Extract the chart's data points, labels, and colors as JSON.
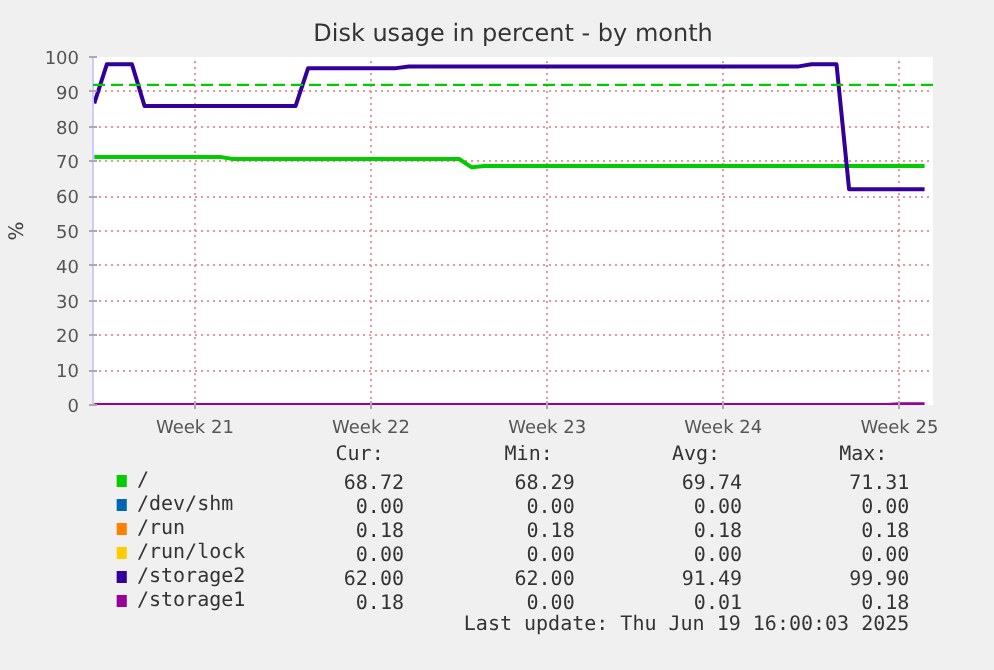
{
  "chart_data": {
    "type": "line",
    "title": "Disk usage in percent - by month",
    "ylabel": "%",
    "categories": [
      null,
      null,
      null,
      null,
      null,
      null,
      null,
      null,
      "Week 21",
      null,
      null,
      null,
      null,
      null,
      null,
      null,
      null,
      null,
      null,
      null,
      null,
      null,
      "Week 22",
      null,
      null,
      null,
      null,
      null,
      null,
      null,
      null,
      null,
      null,
      null,
      null,
      null,
      "Week 23",
      null,
      null,
      null,
      null,
      null,
      null,
      null,
      null,
      null,
      null,
      null,
      null,
      null,
      "Week 24",
      null,
      null,
      null,
      null,
      null,
      null,
      null,
      null,
      null,
      null,
      null,
      null,
      null,
      "Week 25",
      null,
      null
    ],
    "ylim": [
      0,
      100
    ],
    "yticks": [
      0,
      10,
      20,
      30,
      40,
      50,
      60,
      70,
      80,
      90,
      100
    ],
    "grid": true,
    "legend": "bottom",
    "line_style": "solid",
    "series": [
      {
        "name": "/",
        "color": "#00cc00",
        "values": [
          71.3,
          71.3,
          71.3,
          71.3,
          71.3,
          71.3,
          71.3,
          71.3,
          71.3,
          71.3,
          71.3,
          70.7,
          70.7,
          70.7,
          70.7,
          70.7,
          70.7,
          70.7,
          70.7,
          70.7,
          70.7,
          70.7,
          70.7,
          70.7,
          70.7,
          70.7,
          70.7,
          70.7,
          70.7,
          70.7,
          68.3,
          68.7,
          68.7,
          68.7,
          68.7,
          68.7,
          68.7,
          68.7,
          68.7,
          68.7,
          68.7,
          68.7,
          68.7,
          68.7,
          68.7,
          68.7,
          68.7,
          68.7,
          68.7,
          68.7,
          68.7,
          68.7,
          68.7,
          68.7,
          68.7,
          68.7,
          68.7,
          68.7,
          68.7,
          68.7,
          68.7,
          68.7,
          68.7,
          68.7,
          68.7,
          68.7,
          68.7
        ]
      },
      {
        "name": "/dev/shm",
        "color": "#0066b3",
        "values": [
          null,
          null,
          null,
          null,
          null,
          null,
          null,
          null,
          null,
          null,
          null,
          null,
          null,
          null,
          null,
          null,
          null,
          null,
          null,
          null,
          null,
          null,
          null,
          null,
          null,
          null,
          null,
          null,
          null,
          null,
          null,
          null,
          null,
          null,
          null,
          null,
          null,
          null,
          null,
          null,
          null,
          null,
          null,
          null,
          null,
          null,
          null,
          null,
          null,
          null,
          null,
          null,
          null,
          null,
          null,
          null,
          null,
          null,
          null,
          null,
          null,
          null,
          null,
          null,
          null,
          null,
          null
        ]
      },
      {
        "name": "/run",
        "color": "#ff8000",
        "values": [
          null,
          null,
          null,
          null,
          null,
          null,
          null,
          null,
          null,
          null,
          null,
          null,
          null,
          null,
          null,
          null,
          null,
          null,
          null,
          null,
          null,
          null,
          null,
          null,
          null,
          null,
          null,
          null,
          null,
          null,
          null,
          null,
          null,
          null,
          null,
          null,
          null,
          null,
          null,
          null,
          null,
          null,
          null,
          null,
          null,
          null,
          null,
          null,
          null,
          null,
          null,
          null,
          null,
          null,
          null,
          null,
          null,
          null,
          null,
          null,
          null,
          null,
          null,
          null,
          null,
          null,
          null
        ]
      },
      {
        "name": "/run/lock",
        "color": "#ffcc00",
        "values": [
          null,
          null,
          null,
          null,
          null,
          null,
          null,
          null,
          null,
          null,
          null,
          null,
          null,
          null,
          null,
          null,
          null,
          null,
          null,
          null,
          null,
          null,
          null,
          null,
          null,
          null,
          null,
          null,
          null,
          null,
          null,
          null,
          null,
          null,
          null,
          null,
          null,
          null,
          null,
          null,
          null,
          null,
          null,
          null,
          null,
          null,
          null,
          null,
          null,
          null,
          null,
          null,
          null,
          null,
          null,
          null,
          null,
          null,
          null,
          null,
          null,
          null,
          null,
          null,
          null,
          null,
          null
        ]
      },
      {
        "name": "/storage2",
        "color": "#330099",
        "values": [
          86.7,
          97.9,
          97.9,
          97.9,
          85.9,
          85.9,
          85.9,
          85.9,
          85.9,
          85.9,
          85.9,
          85.9,
          85.9,
          85.9,
          85.9,
          85.9,
          85.9,
          96.8,
          96.8,
          96.8,
          96.8,
          96.8,
          96.8,
          96.8,
          96.8,
          97.3,
          97.3,
          97.3,
          97.3,
          97.3,
          97.3,
          97.3,
          97.3,
          97.3,
          97.3,
          97.3,
          97.3,
          97.3,
          97.3,
          97.3,
          97.3,
          97.3,
          97.3,
          97.3,
          97.3,
          97.3,
          97.3,
          97.3,
          97.3,
          97.3,
          97.3,
          97.3,
          97.3,
          97.3,
          97.3,
          97.3,
          97.3,
          97.9,
          97.9,
          97.9,
          62,
          62,
          62,
          62,
          62,
          62,
          62
        ]
      },
      {
        "name": "/storage1",
        "color": "#990099",
        "values": [
          0,
          0,
          0,
          0,
          0,
          0,
          0,
          0,
          0,
          0,
          0,
          0,
          0,
          0,
          0,
          0,
          0,
          0,
          0,
          0,
          0,
          0,
          0,
          0,
          0,
          0,
          0,
          0,
          0,
          0,
          0,
          0,
          0,
          0,
          0,
          0,
          0,
          0,
          0,
          0,
          0,
          0,
          0,
          0,
          0,
          0,
          0,
          0,
          0,
          0,
          0,
          0,
          0,
          0,
          0,
          0,
          0,
          0,
          0,
          0,
          0,
          0,
          0,
          0,
          0.2,
          0.2,
          0.2
        ]
      }
    ],
    "ref_lines": [
      {
        "axis": "y",
        "value": 92,
        "color": "#00cc00",
        "line_style": "dashed"
      }
    ],
    "annotations": [
      "Cur:",
      "Min:",
      "Avg:",
      "Max:",
      "68.72",
      "68.29",
      "69.74",
      "71.31",
      "0.00",
      "0.00",
      "0.00",
      "0.00",
      "0.18",
      "0.18",
      "0.18",
      "0.18",
      "0.00",
      "0.00",
      "0.00",
      "0.00",
      "62.00",
      "62.00",
      "91.49",
      "99.90",
      "0.18",
      "0.00",
      "0.01",
      "0.18",
      "Last update: Thu Jun 19 16:00:03 2025"
    ]
  }
}
